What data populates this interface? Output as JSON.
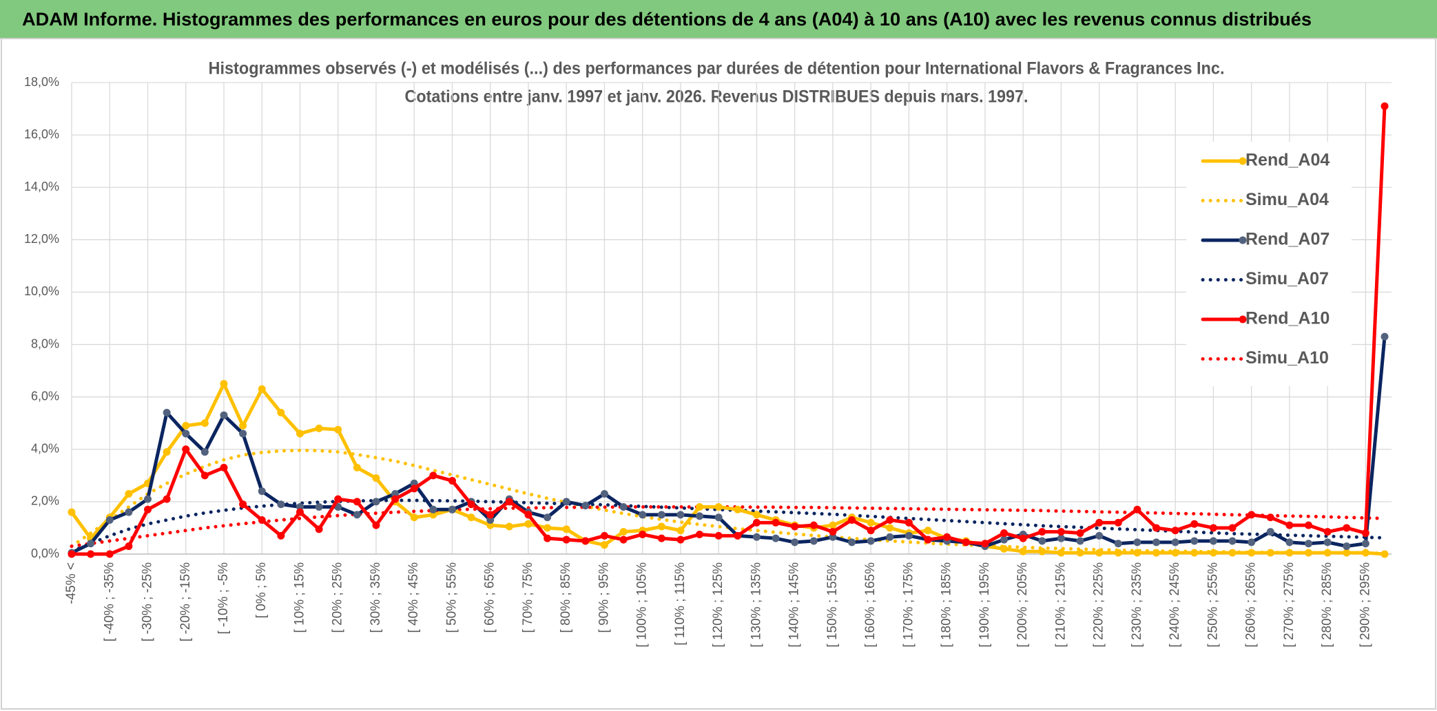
{
  "chart_data": {
    "type": "line",
    "header": "ADAM Informe. Histogrammes des performances en euros pour des détentions de 4 ans (A04) à 10 ans (A10) avec les revenus connus distribués",
    "title": "Histogrammes observés (-) et modélisés (...) des performances par durées de détention pour International Flavors & Fragrances Inc.",
    "subtitle": "Cotations entre janv. 1997 et janv. 2026. Revenus DISTRIBUES depuis mars. 1997.",
    "categories": [
      "-45% <",
      null,
      "[ -40% ; -35%",
      null,
      "[ -30% ; -25%",
      null,
      "[ -20% ; -15%",
      null,
      "[ -10% ; -5%",
      null,
      "[ 0% ; 5%",
      null,
      "[ 10% ; 15%",
      null,
      "[ 20% ; 25%",
      null,
      "[ 30% ; 35%",
      null,
      "[ 40% ; 45%",
      null,
      "[ 50% ; 55%",
      null,
      "[ 60% ; 65%",
      null,
      "[ 70% ; 75%",
      null,
      "[ 80% ; 85%",
      null,
      "[ 90% ; 95%",
      null,
      "[ 100% ; 105%",
      null,
      "[ 110% ; 115%",
      null,
      "[ 120% ; 125%",
      null,
      "[ 130% ; 135%",
      null,
      "[ 140% ; 145%",
      null,
      "[ 150% ; 155%",
      null,
      "[ 160% ; 165%",
      null,
      "[ 170% ; 175%",
      null,
      "[ 180% ; 185%",
      null,
      "[ 190% ; 195%",
      null,
      "[ 200% ; 205%",
      null,
      "[ 210% ; 215%",
      null,
      "[ 220% ; 225%",
      null,
      "[ 230% ; 235%",
      null,
      "[ 240% ; 245%",
      null,
      "[ 250% ; 255%",
      null,
      "[ 260% ; 265%",
      null,
      "[ 270% ; 275%",
      null,
      "[ 280% ; 285%",
      null,
      "[ 290% ; 295%",
      null
    ],
    "ylim": [
      0,
      18
    ],
    "yticks": [
      {
        "value": 0,
        "label": "0,0%"
      },
      {
        "value": 2,
        "label": "2,0%"
      },
      {
        "value": 4,
        "label": "4,0%"
      },
      {
        "value": 6,
        "label": "6,0%"
      },
      {
        "value": 8,
        "label": "8,0%"
      },
      {
        "value": 10,
        "label": "10,0%"
      },
      {
        "value": 12,
        "label": "12,0%"
      },
      {
        "value": 14,
        "label": "14,0%"
      },
      {
        "value": 16,
        "label": "16,0%"
      },
      {
        "value": 18,
        "label": "18,0%"
      }
    ],
    "grid": true,
    "legend": "upper right",
    "series": [
      {
        "name": "Rend_A04",
        "color": "#ffc000",
        "line_style": "solid",
        "markers": true,
        "values": [
          1.6,
          0.6,
          1.4,
          2.3,
          2.7,
          3.9,
          4.9,
          5.0,
          6.5,
          4.9,
          6.3,
          5.4,
          4.6,
          4.8,
          4.75,
          3.3,
          2.9,
          2.0,
          1.4,
          1.5,
          1.7,
          1.4,
          1.1,
          1.05,
          1.15,
          1.0,
          0.95,
          0.5,
          0.35,
          0.85,
          0.9,
          1.05,
          0.9,
          1.8,
          1.8,
          1.7,
          1.5,
          1.3,
          1.1,
          1.0,
          1.1,
          1.4,
          1.2,
          1.0,
          0.8,
          0.9,
          0.6,
          0.5,
          0.3,
          0.2,
          0.1,
          0.1,
          0.05,
          0.05,
          0.05,
          0.05,
          0.05,
          0.05,
          0.05,
          0.05,
          0.05,
          0.05,
          0.05,
          0.05,
          0.05,
          0.05,
          0.05,
          0.05,
          0.05,
          0.0
        ]
      },
      {
        "name": "Simu_A04",
        "color": "#ffc000",
        "line_style": "dotted",
        "markers": false,
        "values": [
          0.3,
          0.8,
          1.3,
          1.8,
          2.3,
          2.7,
          3.05,
          3.35,
          3.6,
          3.78,
          3.88,
          3.94,
          3.96,
          3.95,
          3.9,
          3.8,
          3.68,
          3.55,
          3.38,
          3.2,
          3.02,
          2.84,
          2.66,
          2.48,
          2.3,
          2.13,
          1.97,
          1.82,
          1.68,
          1.55,
          1.43,
          1.32,
          1.22,
          1.13,
          1.05,
          0.97,
          0.9,
          0.83,
          0.77,
          0.71,
          0.65,
          0.6,
          0.55,
          0.5,
          0.46,
          0.42,
          0.38,
          0.35,
          0.32,
          0.29,
          0.26,
          0.23,
          0.21,
          0.19,
          0.17,
          0.15,
          0.13,
          0.12,
          0.11,
          0.1,
          0.09,
          0.08,
          0.07,
          0.06,
          0.06,
          0.05,
          0.05,
          0.04,
          0.04,
          0.03
        ]
      },
      {
        "name": "Rend_A07",
        "color": "#0b2560",
        "marker_color": "#52627e",
        "line_style": "solid",
        "markers": true,
        "values": [
          0.05,
          0.4,
          1.3,
          1.6,
          2.1,
          5.4,
          4.6,
          3.9,
          5.3,
          4.6,
          2.4,
          1.9,
          1.8,
          1.8,
          1.8,
          1.5,
          2.0,
          2.3,
          2.7,
          1.7,
          1.7,
          2.0,
          1.3,
          2.1,
          1.6,
          1.4,
          2.0,
          1.85,
          2.3,
          1.8,
          1.5,
          1.5,
          1.5,
          1.45,
          1.4,
          0.7,
          0.65,
          0.6,
          0.45,
          0.5,
          0.65,
          0.45,
          0.5,
          0.65,
          0.7,
          0.55,
          0.5,
          0.45,
          0.3,
          0.55,
          0.75,
          0.5,
          0.6,
          0.5,
          0.7,
          0.4,
          0.45,
          0.45,
          0.45,
          0.5,
          0.5,
          0.5,
          0.45,
          0.85,
          0.45,
          0.4,
          0.45,
          0.3,
          0.4,
          8.3
        ]
      },
      {
        "name": "Simu_A07",
        "color": "#0b2560",
        "line_style": "dotted",
        "markers": false,
        "values": [
          0.1,
          0.4,
          0.7,
          0.95,
          1.15,
          1.3,
          1.45,
          1.57,
          1.67,
          1.76,
          1.83,
          1.89,
          1.94,
          1.98,
          2.01,
          2.03,
          2.04,
          2.05,
          2.05,
          2.04,
          2.03,
          2.02,
          2.0,
          1.98,
          1.96,
          1.94,
          1.92,
          1.9,
          1.88,
          1.85,
          1.82,
          1.79,
          1.76,
          1.73,
          1.7,
          1.67,
          1.64,
          1.61,
          1.58,
          1.55,
          1.52,
          1.48,
          1.44,
          1.4,
          1.36,
          1.32,
          1.28,
          1.24,
          1.2,
          1.16,
          1.12,
          1.08,
          1.05,
          1.02,
          0.99,
          0.96,
          0.93,
          0.9,
          0.87,
          0.84,
          0.81,
          0.78,
          0.76,
          0.74,
          0.72,
          0.7,
          0.68,
          0.66,
          0.64,
          0.62
        ]
      },
      {
        "name": "Rend_A10",
        "color": "#ff0000",
        "line_style": "solid",
        "markers": true,
        "values": [
          0.0,
          0.0,
          0.0,
          0.3,
          1.7,
          2.1,
          4.0,
          3.0,
          3.3,
          1.9,
          1.3,
          0.7,
          1.6,
          0.95,
          2.1,
          2.0,
          1.1,
          2.1,
          2.5,
          3.0,
          2.8,
          1.9,
          1.5,
          2.0,
          1.5,
          0.6,
          0.55,
          0.5,
          0.7,
          0.55,
          0.75,
          0.6,
          0.55,
          0.75,
          0.7,
          0.7,
          1.2,
          1.2,
          1.05,
          1.1,
          0.85,
          1.3,
          0.9,
          1.3,
          1.2,
          0.55,
          0.65,
          0.45,
          0.4,
          0.8,
          0.6,
          0.85,
          0.85,
          0.8,
          1.2,
          1.2,
          1.7,
          1.0,
          0.9,
          1.15,
          1.0,
          1.0,
          1.5,
          1.4,
          1.1,
          1.1,
          0.85,
          1.0,
          0.8,
          17.1
        ]
      },
      {
        "name": "Simu_A10",
        "color": "#ff0000",
        "line_style": "dotted",
        "markers": false,
        "values": [
          0.3,
          0.4,
          0.5,
          0.6,
          0.7,
          0.8,
          0.9,
          1.0,
          1.08,
          1.16,
          1.23,
          1.3,
          1.36,
          1.42,
          1.47,
          1.52,
          1.56,
          1.6,
          1.63,
          1.66,
          1.69,
          1.71,
          1.73,
          1.75,
          1.76,
          1.77,
          1.78,
          1.79,
          1.79,
          1.8,
          1.8,
          1.8,
          1.8,
          1.8,
          1.8,
          1.8,
          1.79,
          1.79,
          1.78,
          1.78,
          1.77,
          1.76,
          1.75,
          1.74,
          1.73,
          1.72,
          1.71,
          1.7,
          1.69,
          1.68,
          1.67,
          1.66,
          1.64,
          1.63,
          1.61,
          1.6,
          1.58,
          1.57,
          1.55,
          1.54,
          1.52,
          1.5,
          1.49,
          1.47,
          1.45,
          1.44,
          1.42,
          1.4,
          1.38,
          1.36
        ]
      }
    ]
  }
}
